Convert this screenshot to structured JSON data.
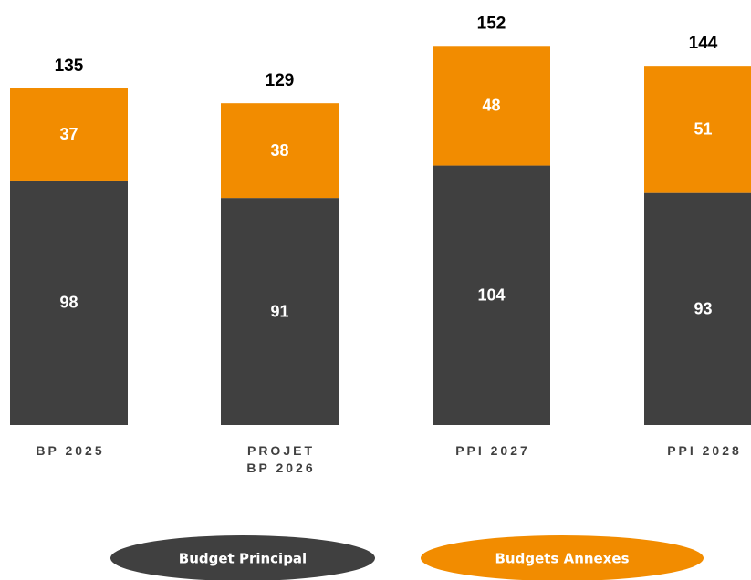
{
  "chart_data": {
    "type": "stacked-bar",
    "categories": [
      "BP 2025",
      "PROJET BP 2026",
      "PPI 2027",
      "PPI 2028"
    ],
    "series": [
      {
        "name": "Budget Principal",
        "color": "#404040",
        "values": [
          98,
          91,
          104,
          93
        ]
      },
      {
        "name": "Budgets Annexes",
        "color": "#f28c00",
        "values": [
          37,
          38,
          48,
          51
        ]
      }
    ],
    "totals": [
      135,
      129,
      152,
      144
    ]
  }
}
